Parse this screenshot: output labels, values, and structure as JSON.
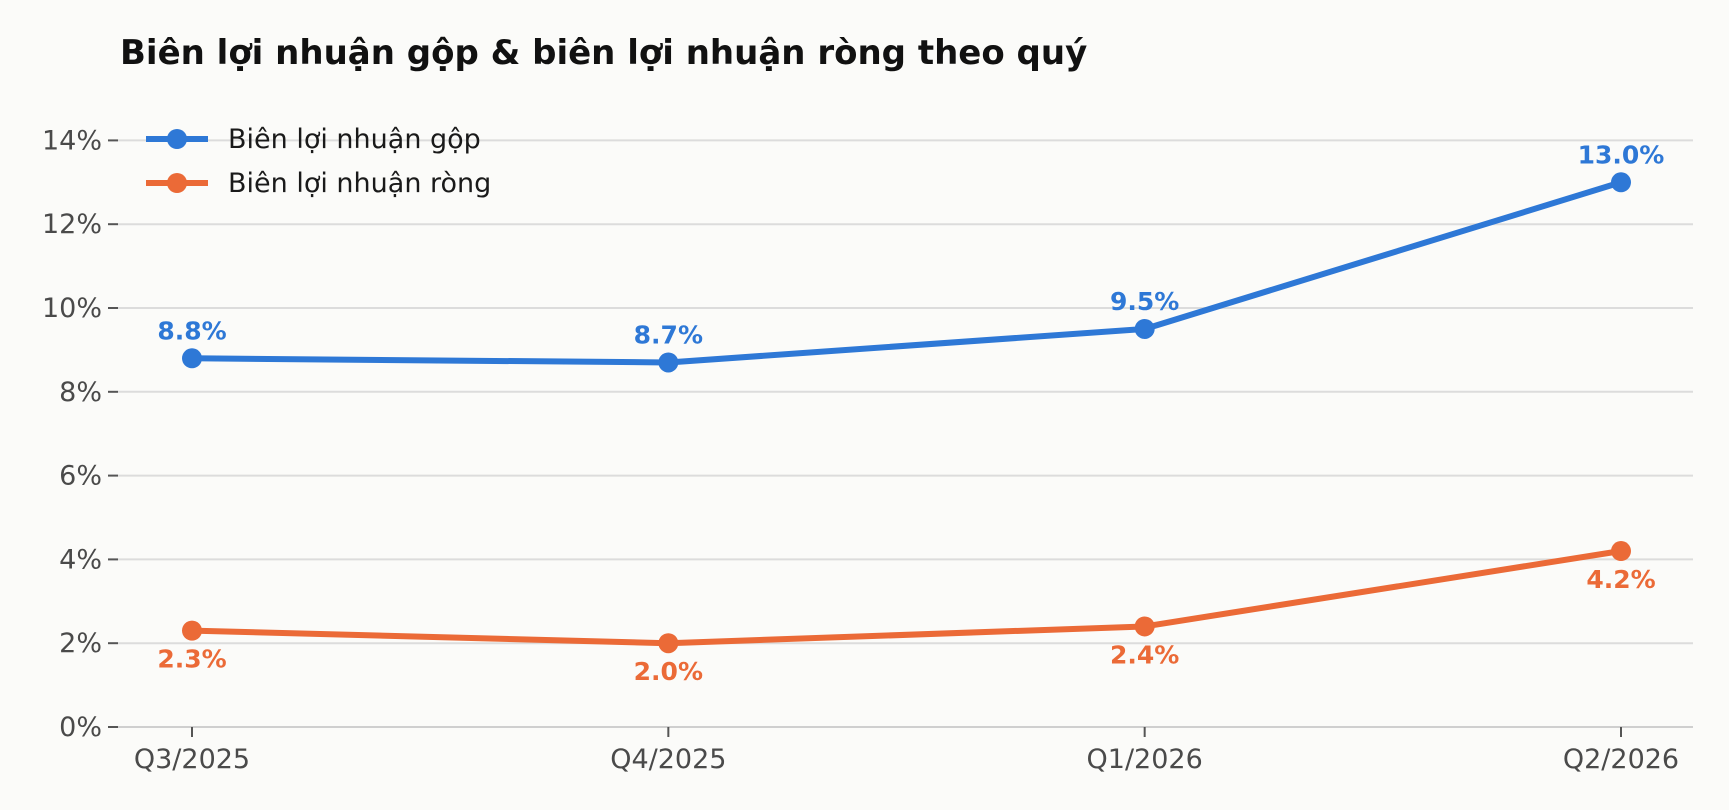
{
  "chart_data": {
    "type": "line",
    "title": "Biên lợi nhuận gộp & biên lợi nhuận ròng theo quý",
    "xlabel": "",
    "ylabel": "",
    "categories": [
      "Q3/2025",
      "Q4/2025",
      "Q1/2026",
      "Q2/2026"
    ],
    "ylim": [
      0,
      15
    ],
    "yticks": [
      0,
      2,
      4,
      6,
      8,
      10,
      12,
      14
    ],
    "ytick_labels": [
      "0%",
      "2%",
      "4%",
      "6%",
      "8%",
      "10%",
      "12%",
      "14%"
    ],
    "grid": "horizontal",
    "legend_position": "top-left",
    "series": [
      {
        "name": "Biên lợi nhuận gộp",
        "color": "#2e78d6",
        "values": [
          8.8,
          8.7,
          9.5,
          13.0
        ],
        "labels": [
          "8.8%",
          "8.7%",
          "9.5%",
          "13.0%"
        ],
        "label_position": "above"
      },
      {
        "name": "Biên lợi nhuận ròng",
        "color": "#eb6a37",
        "values": [
          2.3,
          2.0,
          2.4,
          4.2
        ],
        "labels": [
          "2.3%",
          "2.0%",
          "2.4%",
          "4.2%"
        ],
        "label_position": "below"
      }
    ]
  }
}
